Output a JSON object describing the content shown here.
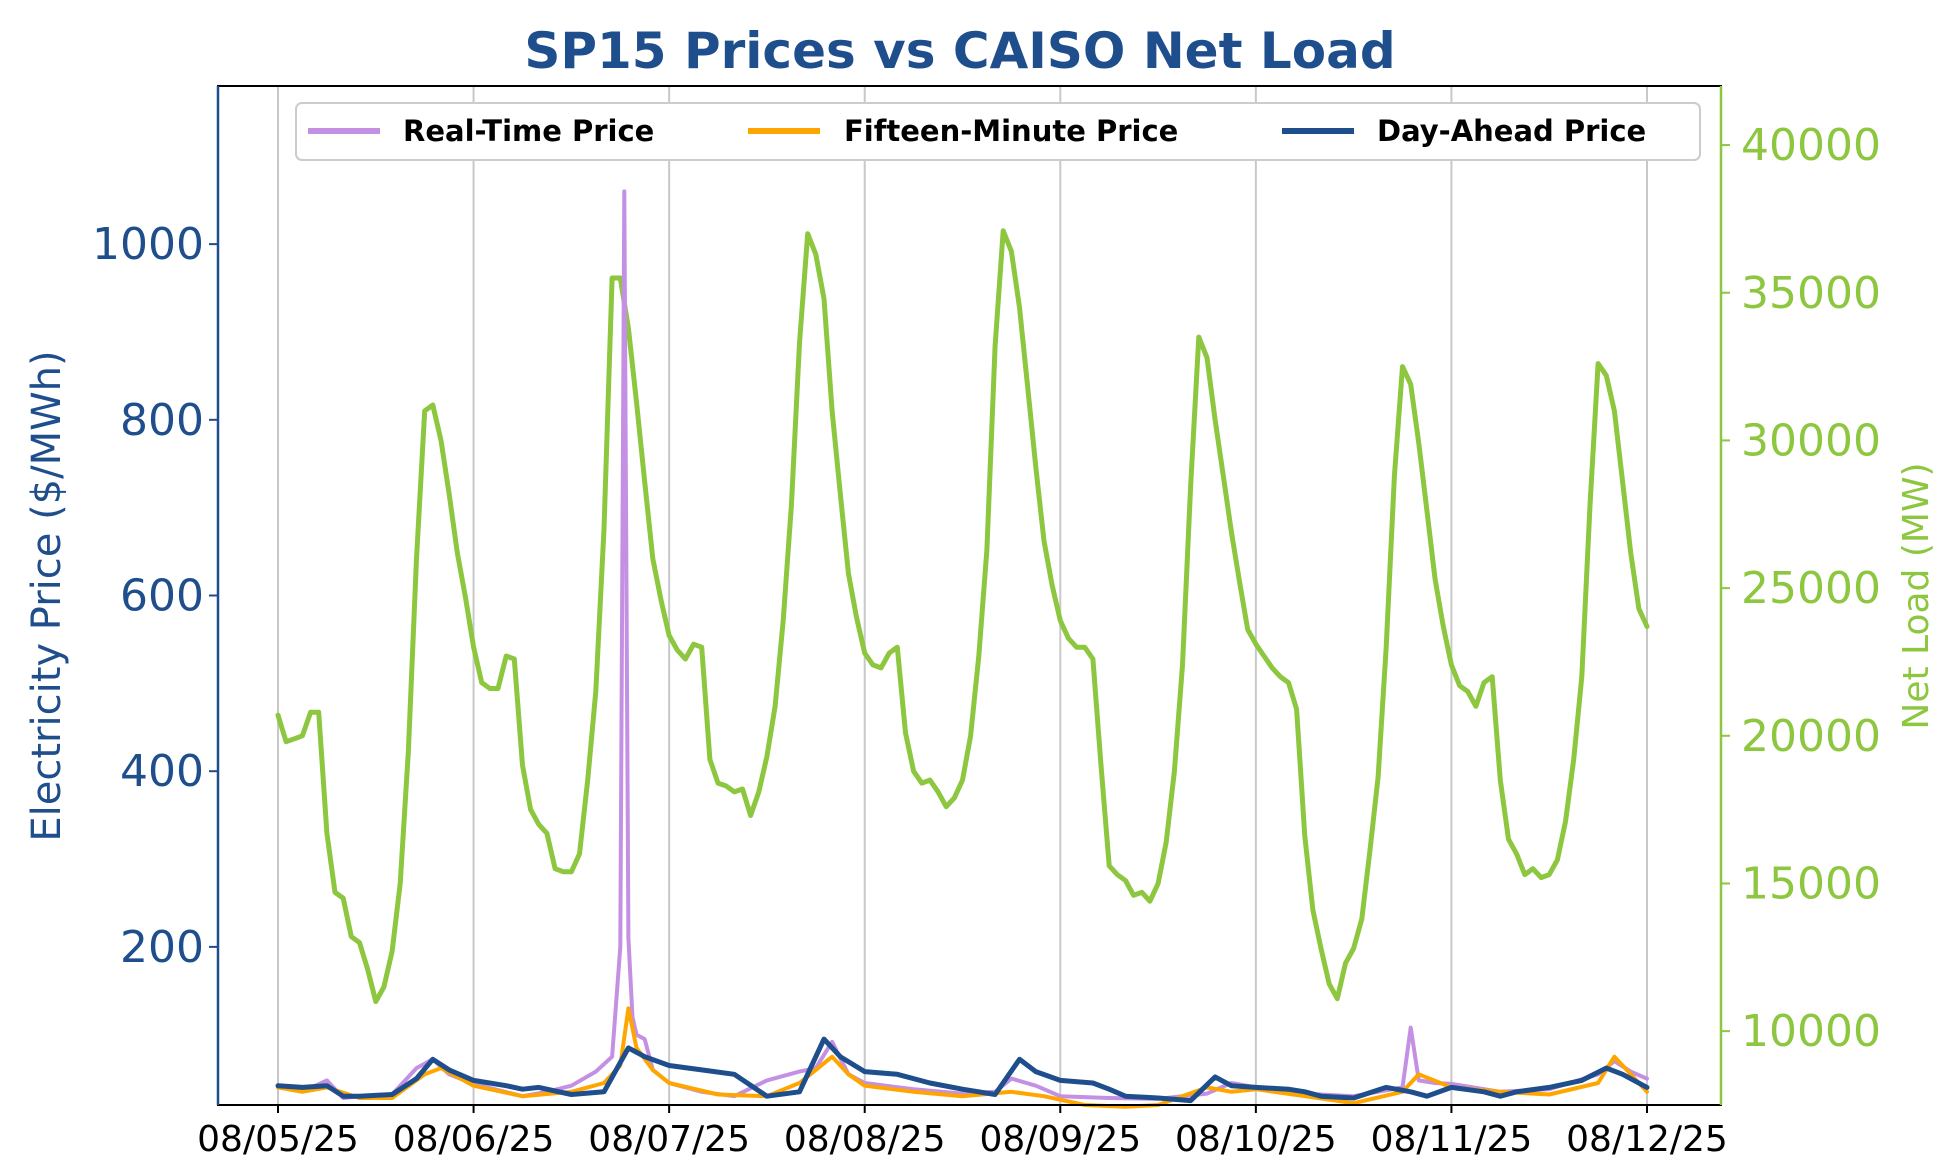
{
  "chart_data": {
    "type": "line",
    "title": "SP15 Prices vs CAISO Net Load",
    "ylabel_left": "Electricity Price ($/MWh)",
    "ylabel_right": "Net Load (MW)",
    "xlabel": "",
    "x_range": [
      "2025-08-05",
      "2025-08-12"
    ],
    "ylim_left": [
      20,
      1180
    ],
    "ylim_right": [
      7500,
      42000
    ],
    "x_ticks": [
      "2025-08-05",
      "2025-08-06",
      "2025-08-07",
      "2025-08-08",
      "2025-08-09",
      "2025-08-10",
      "2025-08-11",
      "2025-08-12"
    ],
    "x_tick_labels": [
      "08/05/25",
      "08/06/25",
      "08/07/25",
      "08/08/25",
      "08/09/25",
      "08/10/25",
      "08/11/25",
      "08/12/25"
    ],
    "y_ticks_left": [
      200,
      400,
      600,
      800,
      1000
    ],
    "y_ticks_right": [
      10000,
      15000,
      20000,
      25000,
      30000,
      35000,
      40000
    ],
    "grid": "vertical",
    "legend_position": "top",
    "colors": {
      "title": "#1f4e8c",
      "left_axis": "#1f4e8c",
      "right_axis": "#8dc63f",
      "real_time": "#c490e4",
      "fifteen_minute": "#ffa500",
      "day_ahead": "#1f4e8c",
      "net_load": "#8dc63f"
    },
    "legend": [
      "Real-Time Price",
      "Fifteen-Minute Price",
      "Day-Ahead Price"
    ],
    "series": [
      {
        "name": "Real-Time Price",
        "axis": "left",
        "color": "#c490e4",
        "x": [
          "2025-08-05T00:00",
          "2025-08-05T03:00",
          "2025-08-05T06:00",
          "2025-08-05T08:00",
          "2025-08-05T10:00",
          "2025-08-05T14:00",
          "2025-08-05T17:00",
          "2025-08-05T19:00",
          "2025-08-05T21:00",
          "2025-08-06T00:00",
          "2025-08-06T06:00",
          "2025-08-06T09:00",
          "2025-08-06T12:00",
          "2025-08-06T15:00",
          "2025-08-06T17:00",
          "2025-08-06T18:00",
          "2025-08-06T18:30",
          "2025-08-06T19:00",
          "2025-08-06T19:30",
          "2025-08-06T20:00",
          "2025-08-06T21:00",
          "2025-08-06T22:00",
          "2025-08-07T00:00",
          "2025-08-07T04:00",
          "2025-08-07T08:00",
          "2025-08-07T12:00",
          "2025-08-07T16:00",
          "2025-08-07T18:00",
          "2025-08-07T20:00",
          "2025-08-07T22:00",
          "2025-08-08T00:00",
          "2025-08-08T06:00",
          "2025-08-08T12:00",
          "2025-08-08T16:00",
          "2025-08-08T18:00",
          "2025-08-08T21:00",
          "2025-08-09T00:00",
          "2025-08-09T06:00",
          "2025-08-09T12:00",
          "2025-08-09T18:00",
          "2025-08-09T21:00",
          "2025-08-10T00:00",
          "2025-08-10T06:00",
          "2025-08-10T12:00",
          "2025-08-10T18:00",
          "2025-08-10T19:00",
          "2025-08-10T20:00",
          "2025-08-10T22:00",
          "2025-08-11T00:00",
          "2025-08-11T06:00",
          "2025-08-11T12:00",
          "2025-08-11T18:00",
          "2025-08-11T20:00",
          "2025-08-11T22:00",
          "2025-08-12T00:00"
        ],
        "values": [
          42,
          35,
          48,
          28,
          30,
          32,
          62,
          72,
          55,
          44,
          30,
          35,
          42,
          58,
          75,
          200,
          1060,
          210,
          120,
          100,
          95,
          60,
          45,
          35,
          30,
          48,
          58,
          62,
          92,
          55,
          45,
          38,
          33,
          35,
          50,
          42,
          30,
          28,
          27,
          33,
          45,
          40,
          33,
          30,
          40,
          108,
          48,
          45,
          44,
          35,
          38,
          55,
          70,
          58,
          50
        ]
      },
      {
        "name": "Fifteen-Minute Price",
        "axis": "left",
        "color": "#ffa500",
        "x": [
          "2025-08-05T00:00",
          "2025-08-05T03:00",
          "2025-08-05T06:00",
          "2025-08-05T10:00",
          "2025-08-05T14:00",
          "2025-08-05T18:00",
          "2025-08-05T20:00",
          "2025-08-06T00:00",
          "2025-08-06T06:00",
          "2025-08-06T12:00",
          "2025-08-06T16:00",
          "2025-08-06T18:00",
          "2025-08-06T19:00",
          "2025-08-06T20:00",
          "2025-08-06T22:00",
          "2025-08-07T00:00",
          "2025-08-07T06:00",
          "2025-08-07T12:00",
          "2025-08-07T16:00",
          "2025-08-07T18:00",
          "2025-08-07T20:00",
          "2025-08-07T22:00",
          "2025-08-08T00:00",
          "2025-08-08T06:00",
          "2025-08-08T12:00",
          "2025-08-08T18:00",
          "2025-08-08T22:00",
          "2025-08-09T03:00",
          "2025-08-09T08:00",
          "2025-08-09T12:00",
          "2025-08-09T18:00",
          "2025-08-09T21:00",
          "2025-08-10T00:00",
          "2025-08-10T06:00",
          "2025-08-10T12:00",
          "2025-08-10T18:00",
          "2025-08-10T20:00",
          "2025-08-11T00:00",
          "2025-08-11T06:00",
          "2025-08-11T12:00",
          "2025-08-11T18:00",
          "2025-08-11T20:00",
          "2025-08-12T00:00"
        ],
        "values": [
          40,
          35,
          40,
          28,
          28,
          55,
          62,
          42,
          30,
          35,
          45,
          65,
          130,
          85,
          60,
          45,
          32,
          30,
          45,
          60,
          75,
          55,
          42,
          35,
          30,
          35,
          30,
          20,
          18,
          20,
          40,
          35,
          38,
          30,
          22,
          35,
          55,
          40,
          35,
          32,
          45,
          75,
          35
        ]
      },
      {
        "name": "Day-Ahead Price",
        "axis": "left",
        "color": "#1f4e8c",
        "x": [
          "2025-08-05T00:00",
          "2025-08-05T03:00",
          "2025-08-05T06:00",
          "2025-08-05T08:00",
          "2025-08-05T10:00",
          "2025-08-05T14:00",
          "2025-08-05T17:00",
          "2025-08-05T19:00",
          "2025-08-05T21:00",
          "2025-08-06T00:00",
          "2025-08-06T04:00",
          "2025-08-06T06:00",
          "2025-08-06T08:00",
          "2025-08-06T12:00",
          "2025-08-06T16:00",
          "2025-08-06T19:00",
          "2025-08-06T21:00",
          "2025-08-07T00:00",
          "2025-08-07T04:00",
          "2025-08-07T08:00",
          "2025-08-07T12:00",
          "2025-08-07T16:00",
          "2025-08-07T19:00",
          "2025-08-07T21:00",
          "2025-08-08T00:00",
          "2025-08-08T04:00",
          "2025-08-08T08:00",
          "2025-08-08T12:00",
          "2025-08-08T16:00",
          "2025-08-08T19:00",
          "2025-08-08T21:00",
          "2025-08-09T00:00",
          "2025-08-09T04:00",
          "2025-08-09T06:00",
          "2025-08-09T08:00",
          "2025-08-09T12:00",
          "2025-08-09T16:00",
          "2025-08-09T19:00",
          "2025-08-09T21:00",
          "2025-08-10T00:00",
          "2025-08-10T04:00",
          "2025-08-10T06:00",
          "2025-08-10T08:00",
          "2025-08-10T12:00",
          "2025-08-10T16:00",
          "2025-08-10T19:00",
          "2025-08-10T21:00",
          "2025-08-11T00:00",
          "2025-08-11T04:00",
          "2025-08-11T06:00",
          "2025-08-11T08:00",
          "2025-08-11T12:00",
          "2025-08-11T16:00",
          "2025-08-11T19:00",
          "2025-08-11T21:00",
          "2025-08-12T00:00"
        ],
        "values": [
          42,
          40,
          42,
          30,
          30,
          32,
          50,
          72,
          60,
          48,
          42,
          38,
          40,
          32,
          35,
          85,
          75,
          65,
          60,
          55,
          30,
          35,
          95,
          75,
          58,
          55,
          45,
          38,
          32,
          72,
          58,
          48,
          45,
          38,
          30,
          28,
          25,
          52,
          42,
          40,
          38,
          35,
          30,
          28,
          40,
          35,
          30,
          40,
          35,
          30,
          35,
          40,
          48,
          62,
          55,
          40
        ]
      },
      {
        "name": "Net Load",
        "axis": "right",
        "color": "#8dc63f",
        "x": [
          "2025-08-05T00:00",
          "2025-08-05T01:00",
          "2025-08-05T02:00",
          "2025-08-05T03:00",
          "2025-08-05T04:00",
          "2025-08-05T05:00",
          "2025-08-05T06:00",
          "2025-08-05T07:00",
          "2025-08-05T08:00",
          "2025-08-05T09:00",
          "2025-08-05T10:00",
          "2025-08-05T11:00",
          "2025-08-05T12:00",
          "2025-08-05T13:00",
          "2025-08-05T14:00",
          "2025-08-05T15:00",
          "2025-08-05T16:00",
          "2025-08-05T17:00",
          "2025-08-05T18:00",
          "2025-08-05T19:00",
          "2025-08-05T20:00",
          "2025-08-05T21:00",
          "2025-08-05T22:00",
          "2025-08-05T23:00",
          "2025-08-06T00:00",
          "2025-08-06T01:00",
          "2025-08-06T02:00",
          "2025-08-06T03:00",
          "2025-08-06T04:00",
          "2025-08-06T05:00",
          "2025-08-06T06:00",
          "2025-08-06T07:00",
          "2025-08-06T08:00",
          "2025-08-06T09:00",
          "2025-08-06T10:00",
          "2025-08-06T11:00",
          "2025-08-06T12:00",
          "2025-08-06T13:00",
          "2025-08-06T14:00",
          "2025-08-06T15:00",
          "2025-08-06T16:00",
          "2025-08-06T17:00",
          "2025-08-06T18:00",
          "2025-08-06T19:00",
          "2025-08-06T20:00",
          "2025-08-06T21:00",
          "2025-08-06T22:00",
          "2025-08-06T23:00",
          "2025-08-07T00:00",
          "2025-08-07T01:00",
          "2025-08-07T02:00",
          "2025-08-07T03:00",
          "2025-08-07T04:00",
          "2025-08-07T05:00",
          "2025-08-07T06:00",
          "2025-08-07T07:00",
          "2025-08-07T08:00",
          "2025-08-07T09:00",
          "2025-08-07T10:00",
          "2025-08-07T11:00",
          "2025-08-07T12:00",
          "2025-08-07T13:00",
          "2025-08-07T14:00",
          "2025-08-07T15:00",
          "2025-08-07T16:00",
          "2025-08-07T17:00",
          "2025-08-07T18:00",
          "2025-08-07T19:00",
          "2025-08-07T20:00",
          "2025-08-07T21:00",
          "2025-08-07T22:00",
          "2025-08-07T23:00",
          "2025-08-08T00:00",
          "2025-08-08T01:00",
          "2025-08-08T02:00",
          "2025-08-08T03:00",
          "2025-08-08T04:00",
          "2025-08-08T05:00",
          "2025-08-08T06:00",
          "2025-08-08T07:00",
          "2025-08-08T08:00",
          "2025-08-08T09:00",
          "2025-08-08T10:00",
          "2025-08-08T11:00",
          "2025-08-08T12:00",
          "2025-08-08T13:00",
          "2025-08-08T14:00",
          "2025-08-08T15:00",
          "2025-08-08T16:00",
          "2025-08-08T17:00",
          "2025-08-08T18:00",
          "2025-08-08T19:00",
          "2025-08-08T20:00",
          "2025-08-08T21:00",
          "2025-08-08T22:00",
          "2025-08-08T23:00",
          "2025-08-09T00:00",
          "2025-08-09T01:00",
          "2025-08-09T02:00",
          "2025-08-09T03:00",
          "2025-08-09T04:00",
          "2025-08-09T05:00",
          "2025-08-09T06:00",
          "2025-08-09T07:00",
          "2025-08-09T08:00",
          "2025-08-09T09:00",
          "2025-08-09T10:00",
          "2025-08-09T11:00",
          "2025-08-09T12:00",
          "2025-08-09T13:00",
          "2025-08-09T14:00",
          "2025-08-09T15:00",
          "2025-08-09T16:00",
          "2025-08-09T17:00",
          "2025-08-09T18:00",
          "2025-08-09T19:00",
          "2025-08-09T20:00",
          "2025-08-09T21:00",
          "2025-08-09T22:00",
          "2025-08-09T23:00",
          "2025-08-10T00:00",
          "2025-08-10T01:00",
          "2025-08-10T02:00",
          "2025-08-10T03:00",
          "2025-08-10T04:00",
          "2025-08-10T05:00",
          "2025-08-10T06:00",
          "2025-08-10T07:00",
          "2025-08-10T08:00",
          "2025-08-10T09:00",
          "2025-08-10T10:00",
          "2025-08-10T11:00",
          "2025-08-10T12:00",
          "2025-08-10T13:00",
          "2025-08-10T14:00",
          "2025-08-10T15:00",
          "2025-08-10T16:00",
          "2025-08-10T17:00",
          "2025-08-10T18:00",
          "2025-08-10T19:00",
          "2025-08-10T20:00",
          "2025-08-10T21:00",
          "2025-08-10T22:00",
          "2025-08-10T23:00",
          "2025-08-11T00:00",
          "2025-08-11T01:00",
          "2025-08-11T02:00",
          "2025-08-11T03:00",
          "2025-08-11T04:00",
          "2025-08-11T05:00",
          "2025-08-11T06:00",
          "2025-08-11T07:00",
          "2025-08-11T08:00",
          "2025-08-11T09:00",
          "2025-08-11T10:00",
          "2025-08-11T11:00",
          "2025-08-11T12:00",
          "2025-08-11T13:00",
          "2025-08-11T14:00",
          "2025-08-11T15:00",
          "2025-08-11T16:00",
          "2025-08-11T17:00",
          "2025-08-11T18:00",
          "2025-08-11T19:00",
          "2025-08-11T20:00",
          "2025-08-11T21:00",
          "2025-08-11T22:00",
          "2025-08-11T23:00",
          "2025-08-12T00:00"
        ],
        "values": [
          20700,
          19800,
          19900,
          20000,
          20800,
          20800,
          16700,
          14700,
          14500,
          13200,
          13000,
          12100,
          11000,
          11500,
          12700,
          15000,
          19500,
          26000,
          31000,
          31200,
          30000,
          28200,
          26200,
          24700,
          23000,
          21800,
          21600,
          21600,
          22700,
          22600,
          19000,
          17500,
          17000,
          16700,
          15500,
          15400,
          15400,
          16000,
          18500,
          21500,
          27000,
          35500,
          35500,
          33800,
          31300,
          28600,
          26000,
          24600,
          23400,
          22900,
          22600,
          23100,
          23000,
          19200,
          18400,
          18300,
          18100,
          18200,
          17300,
          18100,
          19300,
          21000,
          23900,
          27800,
          33300,
          37000,
          36300,
          34800,
          31000,
          28200,
          25500,
          24000,
          22800,
          22400,
          22300,
          22800,
          23000,
          20100,
          18800,
          18400,
          18500,
          18100,
          17600,
          17900,
          18500,
          20000,
          22700,
          26300,
          33200,
          37100,
          36400,
          34500,
          31800,
          29100,
          26600,
          25100,
          23900,
          23300,
          23000,
          23000,
          22600,
          19000,
          15600,
          15300,
          15100,
          14600,
          14700,
          14400,
          15000,
          16400,
          18800,
          22400,
          28500,
          33500,
          32800,
          30700,
          28800,
          26900,
          25200,
          23600,
          23100,
          22700,
          22300,
          22000,
          21800,
          20900,
          16600,
          14100,
          12800,
          11600,
          11100,
          12300,
          12800,
          13800,
          16100,
          18600,
          23000,
          28800,
          32500,
          31900,
          29900,
          27600,
          25300,
          23700,
          22400,
          21700,
          21500,
          21000,
          21800,
          22000,
          18500,
          16500,
          16000,
          15300,
          15500,
          15200,
          15300,
          15800,
          17100,
          19200,
          22000,
          27800,
          32600,
          32200,
          31000,
          28600,
          26200,
          24300,
          23700
        ]
      }
    ]
  }
}
